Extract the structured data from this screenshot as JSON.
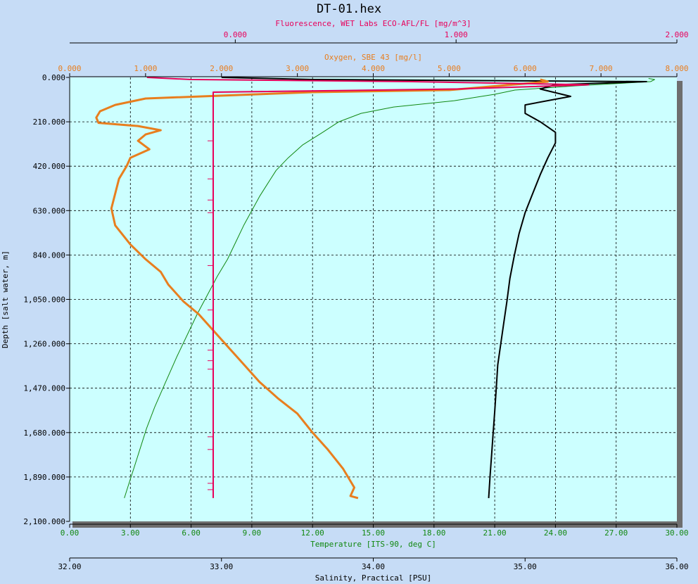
{
  "chart_data": {
    "type": "line",
    "title": "DT-01.hex",
    "grid": true,
    "y_axis": {
      "label": "Depth [salt water, m]",
      "ylim": [
        0,
        2100
      ],
      "inverted": true,
      "ticks": [
        "0.000",
        "210.000",
        "420.000",
        "630.000",
        "840.000",
        "1,050.000",
        "1,260.000",
        "1,470.000",
        "1,680.000",
        "1,890.000",
        "2,100.000"
      ]
    },
    "x_axes": {
      "fluorescence": {
        "label": "Fluorescence, WET Labs ECO-AFL/FL [mg/m^3]",
        "color": "#e8005a",
        "position": "top",
        "range": [
          -0.75,
          2.0
        ],
        "ticks": [
          "0.000",
          "1.000",
          "2.000"
        ]
      },
      "oxygen": {
        "label": "Oxygen, SBE 43 [mg/l]",
        "color": "#e87e1e",
        "position": "top",
        "range": [
          0,
          8
        ],
        "ticks": [
          "0.000",
          "1.000",
          "2.000",
          "3.000",
          "4.000",
          "5.000",
          "6.000",
          "7.000",
          "8.000"
        ]
      },
      "temperature": {
        "label": "Temperature [ITS-90, deg C]",
        "color": "#118811",
        "position": "bottom",
        "range": [
          0,
          30
        ],
        "ticks": [
          "0.00",
          "3.00",
          "6.00",
          "9.00",
          "12.00",
          "15.00",
          "18.00",
          "21.00",
          "24.00",
          "27.00",
          "30.00"
        ]
      },
      "salinity": {
        "label": "Salinity, Practical [PSU]",
        "color": "#000000",
        "position": "bottom",
        "range": [
          32,
          36
        ],
        "ticks": [
          "32.00",
          "33.00",
          "34.00",
          "35.00",
          "36.00"
        ]
      }
    },
    "series": [
      {
        "name": "Temperature [ITS-90, deg C]",
        "axis": "temperature",
        "color": "#118811",
        "points": [
          [
            28.6,
            5
          ],
          [
            28.9,
            10
          ],
          [
            28.7,
            20
          ],
          [
            25,
            40
          ],
          [
            22,
            60
          ],
          [
            21,
            80
          ],
          [
            19,
            110
          ],
          [
            16,
            140
          ],
          [
            14.4,
            170
          ],
          [
            13.3,
            210
          ],
          [
            12.5,
            260
          ],
          [
            11.5,
            320
          ],
          [
            10.8,
            380
          ],
          [
            10.2,
            440
          ],
          [
            9.8,
            500
          ],
          [
            9.4,
            560
          ],
          [
            9.0,
            630
          ],
          [
            8.6,
            700
          ],
          [
            8.2,
            780
          ],
          [
            7.8,
            860
          ],
          [
            7.3,
            940
          ],
          [
            6.8,
            1030
          ],
          [
            6.3,
            1120
          ],
          [
            5.8,
            1220
          ],
          [
            5.3,
            1320
          ],
          [
            4.7,
            1450
          ],
          [
            4.2,
            1560
          ],
          [
            3.8,
            1660
          ],
          [
            3.5,
            1750
          ],
          [
            3.2,
            1840
          ],
          [
            2.9,
            1930
          ],
          [
            2.7,
            1990
          ]
        ]
      },
      {
        "name": "Salinity, Practical [PSU]",
        "axis": "salinity",
        "color": "#000000",
        "points": [
          [
            33.0,
            0
          ],
          [
            33.6,
            10
          ],
          [
            35.8,
            20
          ],
          [
            35.2,
            35
          ],
          [
            35.1,
            55
          ],
          [
            35.3,
            90
          ],
          [
            35.0,
            130
          ],
          [
            35.0,
            170
          ],
          [
            35.1,
            210
          ],
          [
            35.2,
            260
          ],
          [
            35.2,
            310
          ],
          [
            35.15,
            380
          ],
          [
            35.1,
            460
          ],
          [
            35.05,
            550
          ],
          [
            35.0,
            640
          ],
          [
            34.96,
            740
          ],
          [
            34.93,
            840
          ],
          [
            34.9,
            950
          ],
          [
            34.88,
            1060
          ],
          [
            34.86,
            1160
          ],
          [
            34.84,
            1260
          ],
          [
            34.82,
            1360
          ],
          [
            34.81,
            1470
          ],
          [
            34.8,
            1580
          ],
          [
            34.79,
            1680
          ],
          [
            34.78,
            1780
          ],
          [
            34.77,
            1880
          ],
          [
            34.76,
            1990
          ]
        ]
      },
      {
        "name": "Oxygen, SBE 43 [mg/l]",
        "axis": "oxygen",
        "color": "#e87e1e",
        "points": [
          [
            6.2,
            10
          ],
          [
            6.3,
            20
          ],
          [
            5.0,
            60
          ],
          [
            3.2,
            70
          ],
          [
            1.0,
            100
          ],
          [
            0.6,
            130
          ],
          [
            0.4,
            160
          ],
          [
            0.35,
            190
          ],
          [
            0.38,
            215
          ],
          [
            0.9,
            230
          ],
          [
            1.2,
            250
          ],
          [
            1.0,
            270
          ],
          [
            0.9,
            300
          ],
          [
            1.05,
            340
          ],
          [
            0.8,
            380
          ],
          [
            0.75,
            420
          ],
          [
            0.65,
            480
          ],
          [
            0.6,
            550
          ],
          [
            0.55,
            620
          ],
          [
            0.6,
            700
          ],
          [
            0.8,
            790
          ],
          [
            1.0,
            860
          ],
          [
            1.2,
            920
          ],
          [
            1.3,
            980
          ],
          [
            1.5,
            1060
          ],
          [
            1.7,
            1120
          ],
          [
            1.9,
            1200
          ],
          [
            2.1,
            1280
          ],
          [
            2.3,
            1360
          ],
          [
            2.5,
            1440
          ],
          [
            2.75,
            1520
          ],
          [
            3.0,
            1590
          ],
          [
            3.2,
            1680
          ],
          [
            3.4,
            1760
          ],
          [
            3.6,
            1850
          ],
          [
            3.75,
            1940
          ],
          [
            3.7,
            1980
          ],
          [
            3.8,
            1990
          ]
        ]
      },
      {
        "name": "Fluorescence, WET Labs ECO-AFL/FL [mg/m^3]",
        "axis": "fluorescence",
        "color": "#e8005a",
        "points": [
          [
            -0.4,
            0
          ],
          [
            -0.2,
            10
          ],
          [
            0.8,
            20
          ],
          [
            1.6,
            35
          ],
          [
            1.0,
            55
          ],
          [
            -0.1,
            70
          ],
          [
            -0.1,
            90
          ],
          [
            -0.1,
            100
          ],
          [
            -0.1,
            300
          ],
          [
            -0.1,
            600
          ],
          [
            -0.1,
            900
          ],
          [
            -0.1,
            1200
          ],
          [
            -0.1,
            1500
          ],
          [
            -0.1,
            1800
          ],
          [
            -0.1,
            1990
          ]
        ]
      }
    ]
  }
}
